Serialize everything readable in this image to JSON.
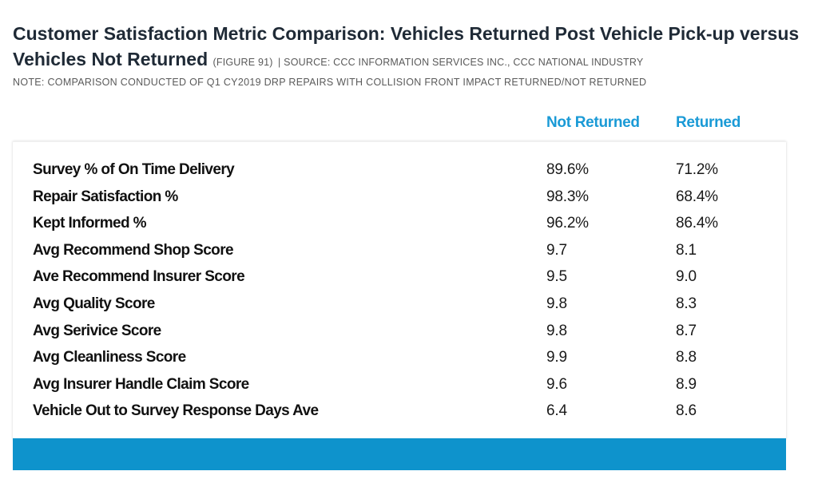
{
  "title": {
    "main": "Customer Satisfaction Metric Comparison: Vehicles Returned Post Vehicle Pick-up versus Vehicles Not Returned",
    "figure": "(FIGURE 91)",
    "source": "| SOURCE: CCC INFORMATION SERVICES INC., CCC NATIONAL INDUSTRY"
  },
  "note": "NOTE: COMPARISON CONDUCTED OF Q1 CY2019 DRP REPAIRS WITH COLLISION FRONT IMPACT RETURNED/NOT RETURNED",
  "colors": {
    "accent": "#1a9ad6",
    "bar": "#0e93cc",
    "title": "#1f2a36"
  },
  "chart_data": {
    "type": "table",
    "columns": [
      "Not Returned",
      "Returned"
    ],
    "rows": [
      {
        "metric": "Survey % of On Time Delivery",
        "not_returned": "89.6%",
        "returned": "71.2%"
      },
      {
        "metric": "Repair Satisfaction %",
        "not_returned": "98.3%",
        "returned": "68.4%"
      },
      {
        "metric": "Kept Informed %",
        "not_returned": "96.2%",
        "returned": "86.4%"
      },
      {
        "metric": "Avg Recommend Shop Score",
        "not_returned": "9.7",
        "returned": "8.1"
      },
      {
        "metric": "Ave Recommend Insurer Score",
        "not_returned": "9.5",
        "returned": "9.0"
      },
      {
        "metric": "Avg Quality Score",
        "not_returned": "9.8",
        "returned": "8.3"
      },
      {
        "metric": "Avg Serivice Score",
        "not_returned": "9.8",
        "returned": "8.7"
      },
      {
        "metric": "Avg Cleanliness Score",
        "not_returned": "9.9",
        "returned": "8.8"
      },
      {
        "metric": "Avg Insurer Handle Claim Score",
        "not_returned": "9.6",
        "returned": "8.9"
      },
      {
        "metric": "Vehicle Out to Survey Response Days Ave",
        "not_returned": "6.4",
        "returned": "8.6"
      }
    ]
  }
}
